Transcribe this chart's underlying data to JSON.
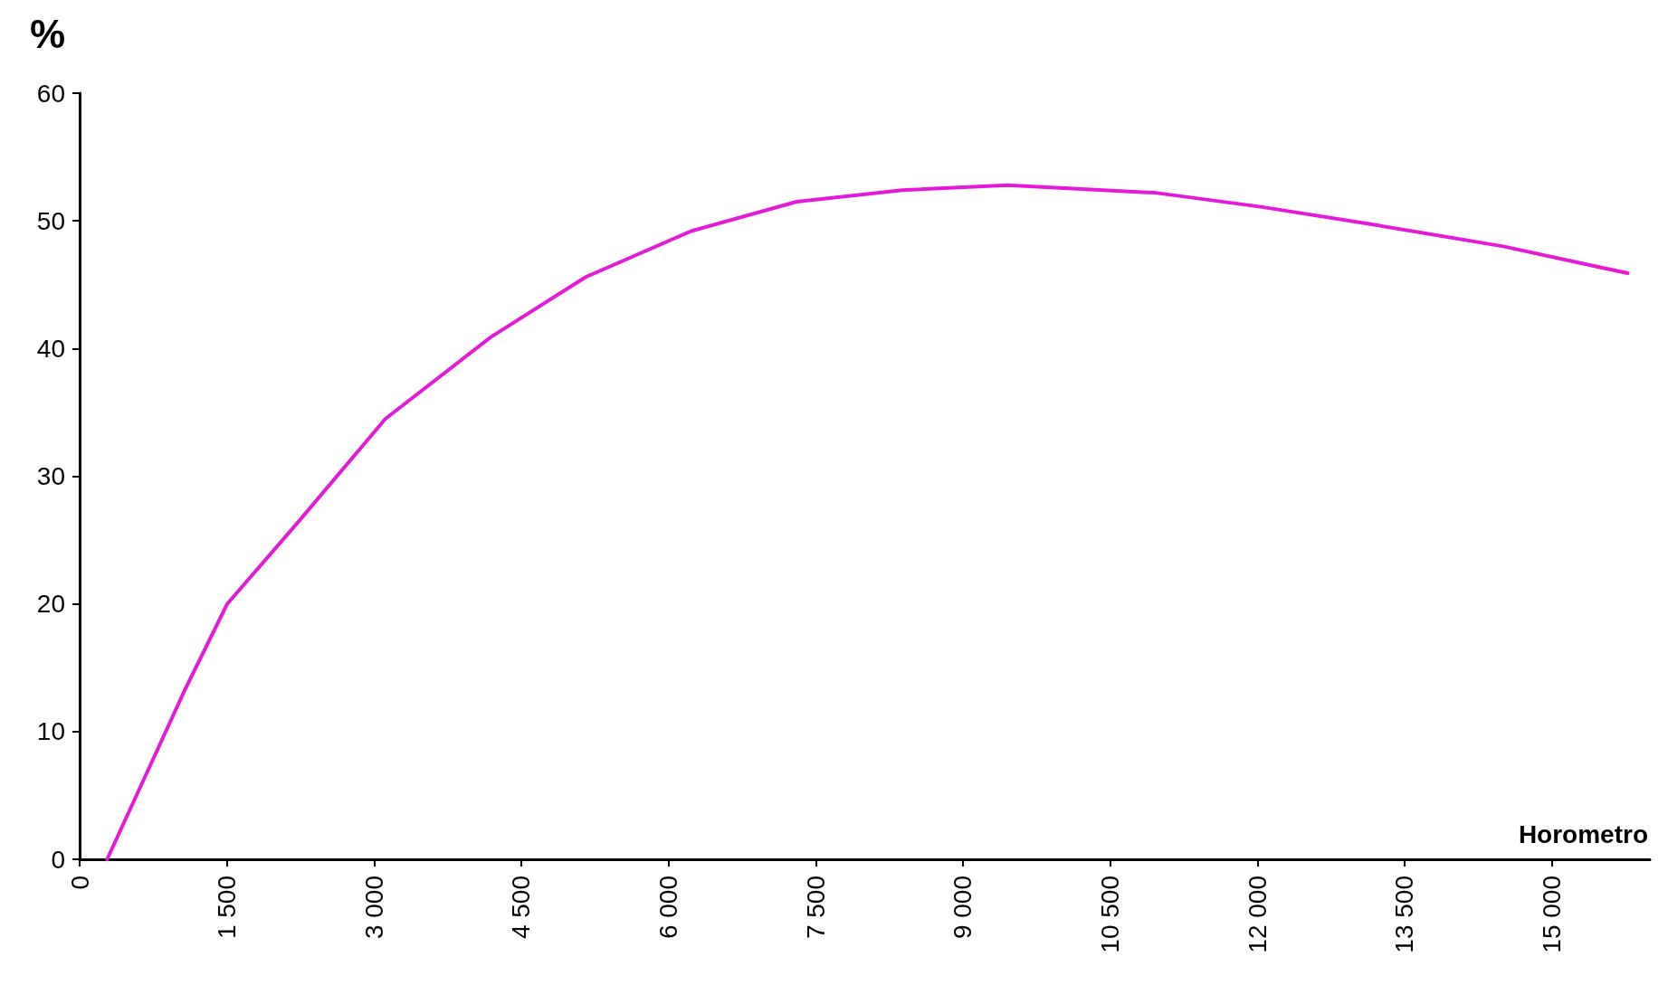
{
  "chart_data": {
    "type": "line",
    "xlabel": "Horometro",
    "ylabel": "%",
    "x": [
      280,
      752,
      1074,
      1504,
      2203,
      3116,
      4190,
      5157,
      6232,
      7306,
      8381,
      9455,
      10960,
      12034,
      13108,
      14505,
      15773
    ],
    "series": [
      {
        "color": "#e619d9",
        "values": [
          0,
          7.9,
          13.3,
          20,
          26.2,
          34.5,
          40.9,
          45.6,
          49.2,
          51.5,
          52.4,
          52.8,
          52.2,
          51.1,
          49.8,
          48,
          45.9
        ]
      }
    ],
    "xlim": [
      0,
      16000
    ],
    "xticks": [
      0,
      {
        "value": 1500,
        "label": "1 500"
      },
      {
        "value": 3000,
        "label": "3 000"
      },
      {
        "value": 4500,
        "label": "4 500"
      },
      {
        "value": 6000,
        "label": "6 000"
      },
      {
        "value": 7500,
        "label": "7 500"
      },
      {
        "value": 9000,
        "label": "9 000"
      },
      {
        "value": 10500,
        "label": "10 500"
      },
      {
        "value": 12000,
        "label": "12 000"
      },
      {
        "value": 13500,
        "label": "13 500"
      },
      {
        "value": 15000,
        "label": "15 000"
      }
    ],
    "ylim": [
      0,
      60
    ],
    "yticks": [
      0,
      10,
      20,
      30,
      40,
      50,
      60
    ],
    "grid": false,
    "marker": "none",
    "line_style": "solid"
  }
}
